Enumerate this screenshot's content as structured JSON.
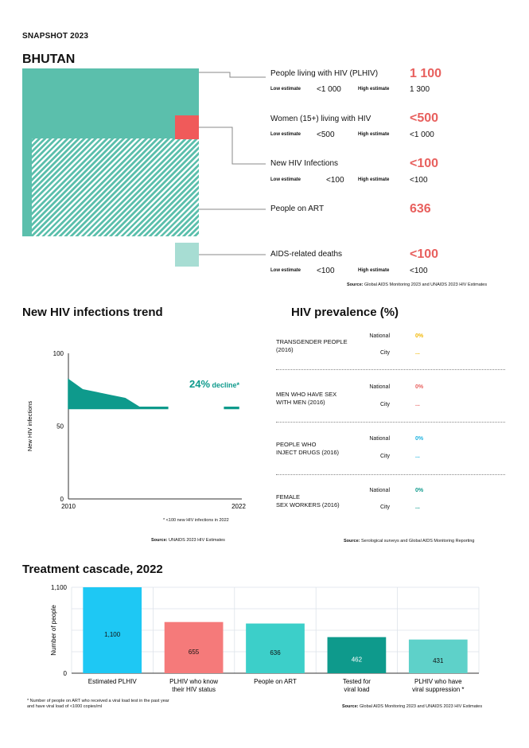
{
  "header": {
    "snapshot": "SNAPSHOT 2023",
    "country": "BHUTAN"
  },
  "indicators": [
    {
      "label": "People living with HIV (PLHIV)",
      "value": "1 100",
      "low_label": "Low estimate",
      "low": "<1 000",
      "high_label": "High estimate",
      "high": "1 300"
    },
    {
      "label": "Women (15+) living with HIV",
      "value": "<500",
      "low_label": "Low estimate",
      "low": "<500",
      "high_label": "High estimate",
      "high": "<1 000"
    },
    {
      "label": "New HIV Infections",
      "value": "<100",
      "low_label": "Low estimate",
      "low": "<100",
      "high_label": "High estimate",
      "high": "<100"
    },
    {
      "label": "People on ART",
      "value": "636"
    },
    {
      "label": "AIDS-related deaths",
      "value": "<100",
      "low_label": "Low estimate",
      "low": "<100",
      "high_label": "High estimate",
      "high": "<100"
    }
  ],
  "source_top": {
    "label": "Source:",
    "text": "Global AIDS Monitoring 2023 and UNAIDS 2023 HIV Estimates"
  },
  "trend": {
    "title": "New HIV infections trend",
    "ylabel": "New HIV infections",
    "decline_value": "24%",
    "decline_text": " decline*",
    "footnote": "* <100 new HIV infections in 2022",
    "source_label": "Source:",
    "source": "UNAIDS 2023 HIV Estimates"
  },
  "prevalence": {
    "title": "HIV prevalence (%)",
    "national_label": "National",
    "city_label": "City",
    "groups": [
      {
        "line1": "TRANSGENDER PEOPLE",
        "line2": "(2016)",
        "national": "0%",
        "city": "...",
        "color": "#f2b705"
      },
      {
        "line1": "MEN WHO HAVE SEX",
        "line2": "WITH MEN (2016)",
        "national": "0%",
        "city": "...",
        "color": "#e8605e"
      },
      {
        "line1": "PEOPLE WHO",
        "line2": "INJECT DRUGS (2016)",
        "national": "0%",
        "city": "...",
        "color": "#1fb3e0"
      },
      {
        "line1": "FEMALE",
        "line2": "SEX WORKERS (2016)",
        "national": "0%",
        "city": "...",
        "color": "#0e9a8c"
      }
    ],
    "source_label": "Source:",
    "source": "Serological surveys and Global AIDS Monitoring Reporting"
  },
  "cascade": {
    "title": "Treatment cascade, 2022",
    "footnote1": "* Number of people on ART who received a viral load test in the past year",
    "footnote2": "and have viral load of <1000 copies/ml",
    "source_label": "Source:",
    "source": "Global AIDS Monitoring 2023 and UNAIDS 2023 HIV Estimates"
  },
  "chart_data": [
    {
      "type": "area",
      "title": "New HIV infections trend",
      "xlabel": "",
      "ylabel": "New HIV infections",
      "x": [
        2010,
        2011,
        2012,
        2013,
        2014,
        2015,
        2016,
        2017,
        2018,
        2019,
        2020,
        2021,
        2022
      ],
      "y": [
        82,
        75,
        73,
        71,
        69,
        63,
        63,
        63,
        null,
        null,
        null,
        63,
        63
      ],
      "baseline": 62,
      "xlim": [
        2010,
        2022
      ],
      "ylim": [
        0,
        100
      ],
      "xticks": [
        "2010",
        "2022"
      ],
      "yticks": [
        "0",
        "50",
        "100"
      ],
      "annotation": "24% decline*"
    },
    {
      "type": "bar",
      "title": "Treatment cascade, 2022",
      "ylabel": "Number of people",
      "categories": [
        "Estimated PLHIV",
        "PLHIV who know their HIV status",
        "People on ART",
        "Tested for viral load",
        "PLHIV who have viral suppression *"
      ],
      "category_lines": [
        [
          "Estimated PLHIV"
        ],
        [
          "PLHIV who know",
          "their HIV status"
        ],
        [
          "People on ART"
        ],
        [
          "Tested for",
          "viral load"
        ],
        [
          "PLHIV who have",
          "viral suppression *"
        ]
      ],
      "values": [
        1100,
        655,
        636,
        462,
        431
      ],
      "value_labels": [
        "1,100",
        "655",
        "636",
        "462",
        "431"
      ],
      "colors": [
        "#1ec8f4",
        "#f57a7a",
        "#3ccfc9",
        "#0e9a8c",
        "#5ed1c9"
      ],
      "label_colors": [
        "#111111",
        "#111111",
        "#111111",
        "#ffffff",
        "#111111"
      ],
      "ylim": [
        0,
        1100
      ],
      "yticks": [
        "0",
        "1,100"
      ]
    }
  ]
}
